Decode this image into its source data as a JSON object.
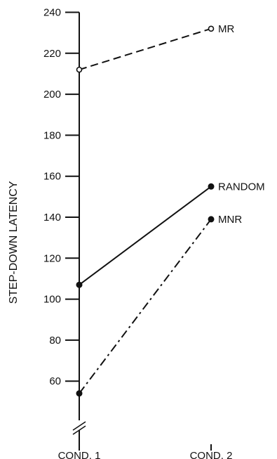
{
  "chart_data": {
    "type": "line",
    "categories": [
      "COND. 1",
      "COND. 2"
    ],
    "ylabel": "STEP-DOWN LATENCY",
    "xlabel": "",
    "ylim": [
      46,
      240
    ],
    "yticks": [
      60,
      80,
      100,
      120,
      140,
      160,
      180,
      200,
      220,
      240
    ],
    "axis_break": true,
    "grid": false,
    "series": [
      {
        "name": "MR",
        "values": [
          212,
          232
        ],
        "line_style": "dashed",
        "marker": "open-circle"
      },
      {
        "name": "RANDOM",
        "values": [
          107,
          155
        ],
        "line_style": "solid",
        "marker": "filled-circle"
      },
      {
        "name": "MNR",
        "values": [
          54,
          139
        ],
        "line_style": "dash-dot",
        "marker": "filled-circle"
      }
    ]
  }
}
